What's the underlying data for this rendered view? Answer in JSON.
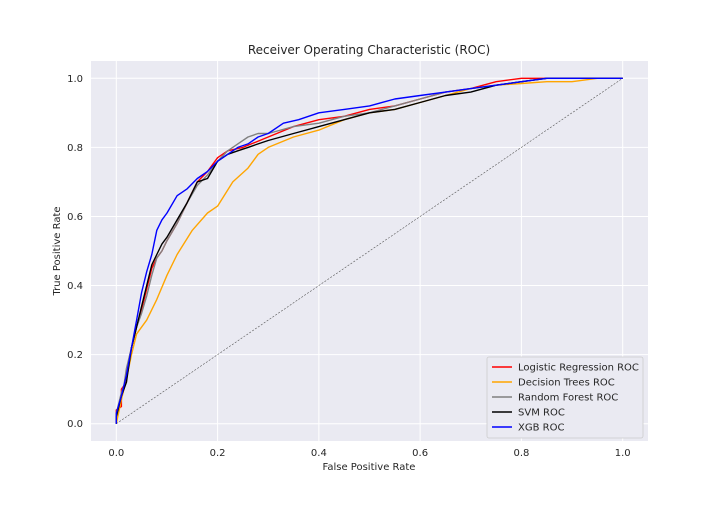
{
  "chart_data": {
    "type": "line",
    "title": "Receiver Operating Characteristic (ROC)",
    "xlabel": "False Positive Rate",
    "ylabel": "True Positive Rate",
    "xlim": [
      -0.05,
      1.05
    ],
    "ylim": [
      -0.05,
      1.05
    ],
    "xticks": [
      0.0,
      0.2,
      0.4,
      0.6,
      0.8,
      1.0
    ],
    "yticks": [
      0.0,
      0.2,
      0.4,
      0.6,
      0.8,
      1.0
    ],
    "xtick_labels": [
      "0.0",
      "0.2",
      "0.4",
      "0.6",
      "0.8",
      "1.0"
    ],
    "ytick_labels": [
      "0.0",
      "0.2",
      "0.4",
      "0.6",
      "0.8",
      "1.0"
    ],
    "grid": true,
    "legend_position": "lower-right",
    "background": "#eaeaf2",
    "diagonal": {
      "x": [
        0,
        1
      ],
      "y": [
        0,
        1
      ],
      "color": "#555555",
      "style": "dashed"
    },
    "series": [
      {
        "name": "Logistic Regression ROC",
        "color": "#ff0000",
        "x": [
          0,
          0,
          0.01,
          0.01,
          0.02,
          0.02,
          0.03,
          0.04,
          0.05,
          0.06,
          0.07,
          0.08,
          0.09,
          0.1,
          0.12,
          0.14,
          0.16,
          0.18,
          0.2,
          0.22,
          0.25,
          0.3,
          0.35,
          0.4,
          0.45,
          0.5,
          0.55,
          0.6,
          0.65,
          0.7,
          0.75,
          0.8,
          0.85,
          0.9,
          0.95,
          1.0
        ],
        "y": [
          0,
          0.04,
          0.05,
          0.1,
          0.12,
          0.15,
          0.22,
          0.28,
          0.33,
          0.39,
          0.45,
          0.48,
          0.5,
          0.53,
          0.58,
          0.64,
          0.7,
          0.73,
          0.77,
          0.79,
          0.8,
          0.83,
          0.86,
          0.88,
          0.89,
          0.91,
          0.92,
          0.94,
          0.96,
          0.97,
          0.99,
          1.0,
          1.0,
          1.0,
          1.0,
          1.0
        ]
      },
      {
        "name": "Decision Trees ROC",
        "color": "#ffa500",
        "x": [
          0,
          0.01,
          0.02,
          0.03,
          0.04,
          0.06,
          0.08,
          0.1,
          0.12,
          0.15,
          0.18,
          0.2,
          0.23,
          0.26,
          0.28,
          0.3,
          0.35,
          0.4,
          0.45,
          0.5,
          0.55,
          0.6,
          0.65,
          0.7,
          0.75,
          0.8,
          0.85,
          0.9,
          0.95,
          1.0
        ],
        "y": [
          0,
          0.07,
          0.13,
          0.2,
          0.26,
          0.3,
          0.36,
          0.43,
          0.49,
          0.56,
          0.61,
          0.63,
          0.7,
          0.74,
          0.78,
          0.8,
          0.83,
          0.85,
          0.88,
          0.9,
          0.91,
          0.93,
          0.95,
          0.97,
          0.98,
          0.985,
          0.99,
          0.99,
          1.0,
          1.0
        ]
      },
      {
        "name": "Random Forest ROC",
        "color": "#808080",
        "x": [
          0,
          0,
          0.01,
          0.015,
          0.02,
          0.03,
          0.04,
          0.05,
          0.06,
          0.07,
          0.08,
          0.09,
          0.1,
          0.12,
          0.14,
          0.16,
          0.18,
          0.2,
          0.22,
          0.24,
          0.26,
          0.28,
          0.3,
          0.35,
          0.4,
          0.45,
          0.5,
          0.55,
          0.6,
          0.65,
          0.7,
          0.75,
          0.8,
          0.85,
          0.9,
          0.95,
          1.0
        ],
        "y": [
          0,
          0.03,
          0.09,
          0.11,
          0.16,
          0.22,
          0.28,
          0.32,
          0.37,
          0.43,
          0.48,
          0.5,
          0.53,
          0.58,
          0.64,
          0.69,
          0.72,
          0.76,
          0.79,
          0.81,
          0.83,
          0.84,
          0.84,
          0.86,
          0.87,
          0.89,
          0.9,
          0.92,
          0.94,
          0.96,
          0.97,
          0.98,
          0.99,
          1.0,
          1.0,
          1.0,
          1.0
        ]
      },
      {
        "name": "SVM ROC",
        "color": "#000000",
        "x": [
          0,
          0,
          0.01,
          0.02,
          0.03,
          0.04,
          0.05,
          0.06,
          0.07,
          0.08,
          0.09,
          0.1,
          0.12,
          0.14,
          0.16,
          0.18,
          0.2,
          0.22,
          0.24,
          0.26,
          0.28,
          0.3,
          0.35,
          0.4,
          0.45,
          0.5,
          0.55,
          0.6,
          0.65,
          0.7,
          0.75,
          0.8,
          0.85,
          0.9,
          0.95,
          1.0
        ],
        "y": [
          0,
          0.02,
          0.08,
          0.12,
          0.22,
          0.28,
          0.34,
          0.4,
          0.46,
          0.49,
          0.52,
          0.54,
          0.59,
          0.64,
          0.7,
          0.71,
          0.76,
          0.78,
          0.79,
          0.8,
          0.81,
          0.82,
          0.84,
          0.86,
          0.88,
          0.9,
          0.91,
          0.93,
          0.95,
          0.96,
          0.98,
          0.99,
          1.0,
          1.0,
          1.0,
          1.0
        ]
      },
      {
        "name": "XGB ROC",
        "color": "#0000ff",
        "x": [
          0,
          0,
          0.01,
          0.015,
          0.02,
          0.03,
          0.04,
          0.05,
          0.06,
          0.07,
          0.08,
          0.09,
          0.1,
          0.12,
          0.14,
          0.16,
          0.18,
          0.2,
          0.22,
          0.24,
          0.26,
          0.28,
          0.3,
          0.33,
          0.36,
          0.4,
          0.45,
          0.5,
          0.55,
          0.6,
          0.65,
          0.7,
          0.75,
          0.8,
          0.85,
          0.9,
          0.95,
          1.0
        ],
        "y": [
          0,
          0.03,
          0.08,
          0.11,
          0.14,
          0.22,
          0.3,
          0.38,
          0.44,
          0.49,
          0.56,
          0.59,
          0.61,
          0.66,
          0.68,
          0.71,
          0.73,
          0.76,
          0.78,
          0.8,
          0.81,
          0.83,
          0.84,
          0.87,
          0.88,
          0.9,
          0.91,
          0.92,
          0.94,
          0.95,
          0.96,
          0.97,
          0.98,
          0.99,
          1.0,
          1.0,
          1.0,
          1.0
        ]
      }
    ]
  }
}
